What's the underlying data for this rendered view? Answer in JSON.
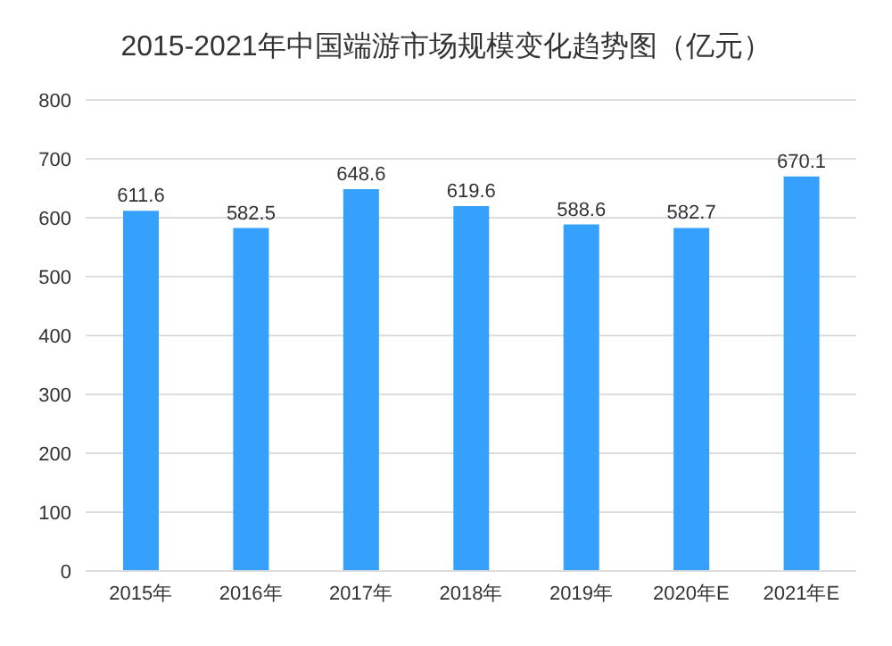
{
  "chart_data": {
    "type": "bar",
    "title": "2015-2021年中国端游市场规模变化趋势图（亿元）",
    "categories": [
      "2015年",
      "2016年",
      "2017年",
      "2018年",
      "2019年",
      "2020年E",
      "2021年E"
    ],
    "values": [
      611.6,
      582.5,
      648.6,
      619.6,
      588.6,
      582.7,
      670.1
    ],
    "color": "#35a1fc",
    "ylim": [
      0,
      800
    ],
    "yticks": [
      0,
      100,
      200,
      300,
      400,
      500,
      600,
      700,
      800
    ],
    "grid": "y",
    "data_labels": true
  }
}
